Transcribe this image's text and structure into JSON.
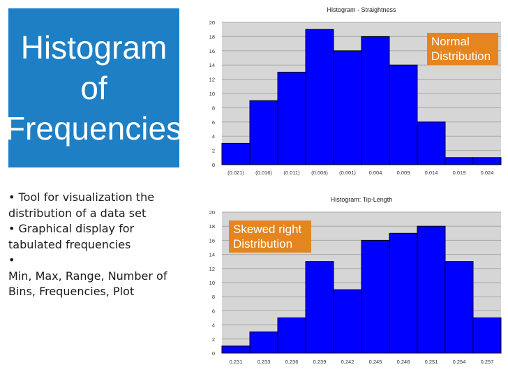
{
  "title": {
    "line1": "Histogram",
    "line2": "of",
    "line3": "Frequencies"
  },
  "bullets": [
    "•  Tool for visualization the distribution of a data set",
    "• Graphical display for tabulated frequencies",
    "•",
    "Min, Max, Range, Number of Bins, Frequencies, Plot"
  ],
  "colors": {
    "title_bg": "#1f7fc4",
    "bar_fill": "#0000ff",
    "callout_bg": "#e4851f",
    "plot_bg": "#d6d6d6"
  },
  "callouts": {
    "top": {
      "line1": "Normal",
      "line2": "Distribution"
    },
    "bottom": {
      "line1": "Skewed right",
      "line2": "Distribution"
    }
  },
  "chart_data": [
    {
      "type": "bar",
      "title": "Histogram - Straightness",
      "categories": [
        "(0.021)",
        "(0.016)",
        "(0.011)",
        "(0.006)",
        "(0.001)",
        "0.004",
        "0.009",
        "0.014",
        "0.019",
        "0.024"
      ],
      "values": [
        3,
        9,
        13,
        19,
        16,
        18,
        14,
        6,
        1,
        1
      ],
      "yticks": [
        0,
        2,
        4,
        6,
        8,
        10,
        12,
        14,
        16,
        18,
        20
      ],
      "ylim": [
        0,
        20
      ],
      "xlabel": "",
      "ylabel": "",
      "grid": true
    },
    {
      "type": "bar",
      "title": "Histogram: Tip-Length",
      "categories": [
        "0.231",
        "0.233",
        "0.236",
        "0.239",
        "0.242",
        "0.245",
        "0.248",
        "0.251",
        "0.254",
        "0.257"
      ],
      "values": [
        1,
        3,
        5,
        13,
        9,
        16,
        17,
        18,
        13,
        5
      ],
      "yticks": [
        0,
        2,
        4,
        6,
        8,
        10,
        12,
        14,
        16,
        18,
        20
      ],
      "ylim": [
        0,
        20
      ],
      "xlabel": "",
      "ylabel": "",
      "grid": true
    }
  ]
}
